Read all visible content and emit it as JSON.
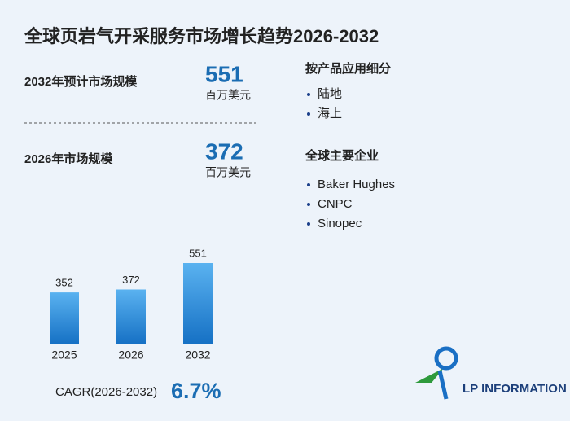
{
  "title": "全球页岩气开采服务市场增长趋势2026-2032",
  "stats": [
    {
      "label": "2032年预计市场规模",
      "value": 551,
      "unit": "百万美元"
    },
    {
      "label": "2026年市场规模",
      "value": 372,
      "unit": "百万美元"
    }
  ],
  "segments": {
    "heading": "按产品应用细分",
    "items": [
      "陆地",
      "海上"
    ]
  },
  "companies": {
    "heading": "全球主要企业",
    "items": [
      "Baker Hughes",
      "CNPC",
      "Sinopec"
    ]
  },
  "chart_data": {
    "type": "bar",
    "categories": [
      "2025",
      "2026",
      "2032"
    ],
    "values": [
      352,
      372,
      551
    ],
    "color": "#1f7fd0"
  },
  "cagr": {
    "label": "CAGR(2026-2032)",
    "value": "6.7%"
  },
  "logo": "LP INFORMATION"
}
